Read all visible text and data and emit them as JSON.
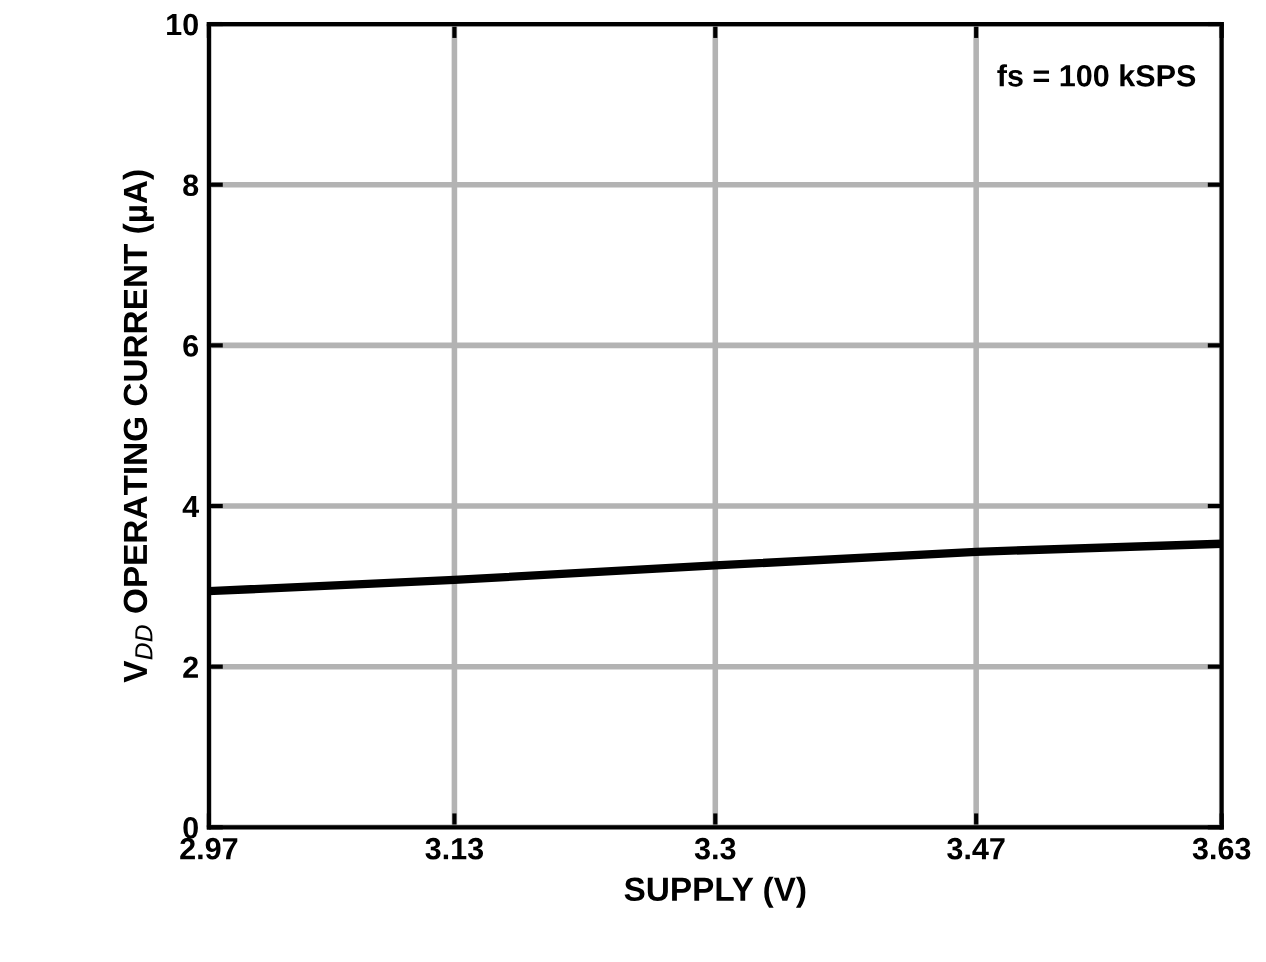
{
  "chart_data": {
    "type": "line",
    "xlabel": "SUPPLY (V)",
    "ylabel": "V$_{DD}$ OPERATING CURRENT (µA)",
    "annotations": [
      "fs = 100 kSPS"
    ],
    "x": [
      2.97,
      3.13,
      3.3,
      3.47,
      3.63
    ],
    "series": [
      {
        "color": "#000000",
        "values": [
          2.94,
          3.08,
          3.26,
          3.43,
          3.53
        ]
      }
    ],
    "xlim": [
      2.97,
      3.63
    ],
    "xticks": [
      2.97,
      3.13,
      3.3,
      3.47,
      3.63
    ],
    "ylim": [
      0,
      10
    ],
    "yticks": [
      0,
      2,
      4,
      6,
      8,
      10
    ],
    "grid": true,
    "marker": "none",
    "line_style": "solid"
  }
}
